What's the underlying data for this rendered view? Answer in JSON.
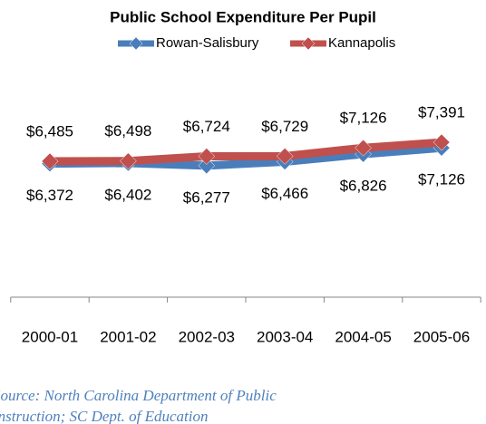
{
  "chart_data": {
    "type": "line",
    "title": "Public School Expenditure Per Pupil",
    "categories": [
      "2000-01",
      "2001-02",
      "2002-03",
      "2003-04",
      "2004-05",
      "2005-06"
    ],
    "series": [
      {
        "name": "Rowan-Salisbury",
        "color": "#4a7ebb",
        "values": [
          6372,
          6402,
          6277,
          6466,
          6826,
          7126
        ],
        "value_labels": [
          "$6,372",
          "$6,402",
          "$6,277",
          "$6,466",
          "$6,826",
          "$7,126"
        ]
      },
      {
        "name": "Kannapolis",
        "color": "#c0504d",
        "values": [
          6485,
          6498,
          6724,
          6729,
          7126,
          7391
        ],
        "value_labels": [
          "$6,485",
          "$6,498",
          "$6,724",
          "$6,729",
          "$7,126",
          "$7,391"
        ]
      }
    ],
    "ylim": [
      0,
      8000
    ],
    "source": [
      "Source: North Carolina Department of Public",
      "Instruction; SC Dept. of Education"
    ]
  }
}
